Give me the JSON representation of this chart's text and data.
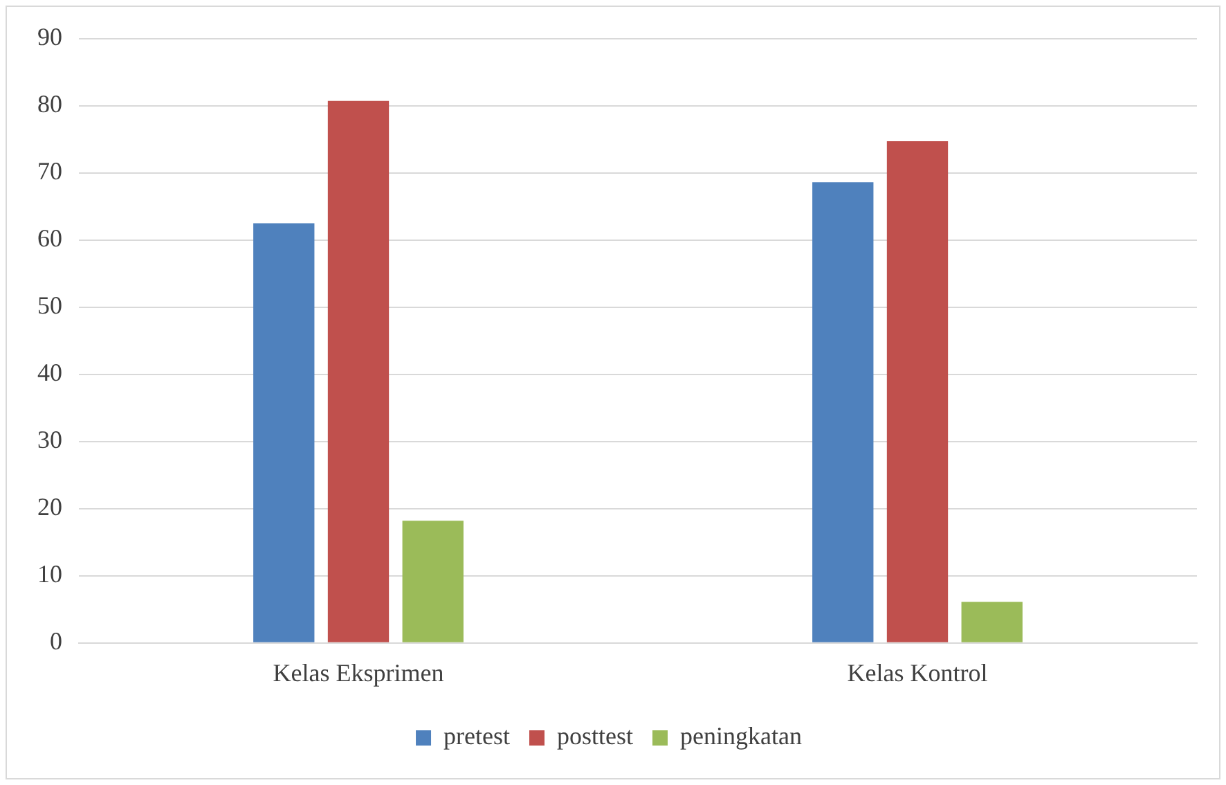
{
  "chart_data": {
    "type": "bar",
    "categories": [
      "Kelas Eksprimen",
      "Kelas Kontrol"
    ],
    "series": [
      {
        "name": "pretest",
        "color": "#4f81bd",
        "values": [
          62.5,
          68.6
        ]
      },
      {
        "name": "posttest",
        "color": "#c0504d",
        "values": [
          80.7,
          74.7
        ]
      },
      {
        "name": "peningkatan",
        "color": "#9bbb59",
        "values": [
          18.2,
          6.1
        ]
      }
    ],
    "ylim": [
      0,
      90
    ],
    "yticks": [
      0,
      10,
      20,
      30,
      40,
      50,
      60,
      70,
      80,
      90
    ],
    "grid": "y",
    "legend": "bottom"
  }
}
